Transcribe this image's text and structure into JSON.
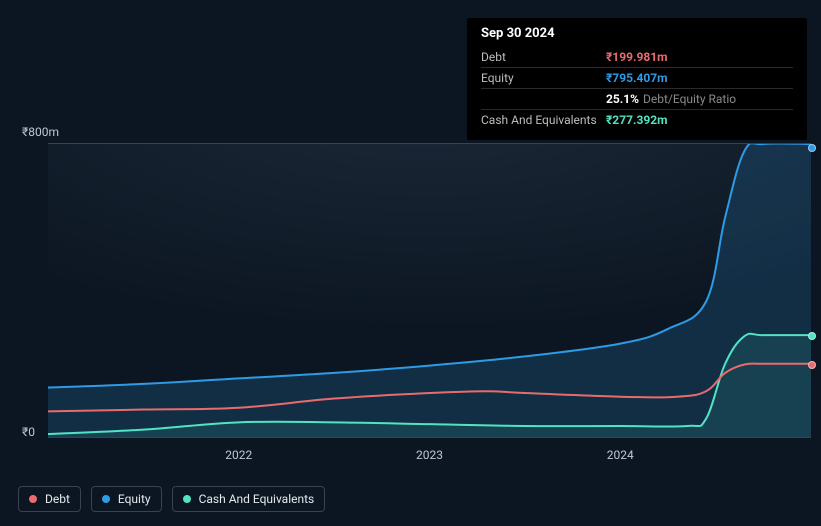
{
  "tooltip": {
    "date": "Sep 30 2024",
    "rows": [
      {
        "label": "Debt",
        "value": "₹199.981m",
        "color": "#e86b6f"
      },
      {
        "label": "Equity",
        "value": "₹795.407m",
        "color": "#2e9be6"
      },
      {
        "label": "",
        "ratio_pct": "25.1%",
        "ratio_label": "Debt/Equity Ratio"
      },
      {
        "label": "Cash And Equivalents",
        "value": "₹277.392m",
        "color": "#52e3c2"
      }
    ]
  },
  "chart": {
    "type": "area-line",
    "background": "#0c1622",
    "axis_color": "#3a424e",
    "text_color": "#bfc7cf",
    "ylim": [
      0,
      800
    ],
    "y_ticks": [
      {
        "v": 800,
        "label": "₹800m"
      },
      {
        "v": 0,
        "label": "₹0"
      }
    ],
    "x_domain": [
      2021.0,
      2025.0
    ],
    "x_ticks": [
      {
        "v": 2022,
        "label": "2022"
      },
      {
        "v": 2023,
        "label": "2023"
      },
      {
        "v": 2024,
        "label": "2024"
      }
    ],
    "series": [
      {
        "name": "Equity",
        "color": "#2e9be6",
        "fill": "rgba(46,155,230,0.18)",
        "stroke_width": 2,
        "points": [
          [
            2021.0,
            135
          ],
          [
            2021.5,
            145
          ],
          [
            2022.0,
            160
          ],
          [
            2022.5,
            175
          ],
          [
            2023.0,
            195
          ],
          [
            2023.5,
            220
          ],
          [
            2024.0,
            255
          ],
          [
            2024.25,
            295
          ],
          [
            2024.45,
            370
          ],
          [
            2024.55,
            600
          ],
          [
            2024.65,
            780
          ],
          [
            2024.75,
            800
          ],
          [
            2025.0,
            800
          ]
        ],
        "end_dot_y": 788
      },
      {
        "name": "Cash And Equivalents",
        "color": "#52e3c2",
        "fill": "rgba(82,227,194,0.10)",
        "stroke_width": 2,
        "points": [
          [
            2021.0,
            8
          ],
          [
            2021.5,
            20
          ],
          [
            2022.0,
            40
          ],
          [
            2022.5,
            40
          ],
          [
            2023.0,
            35
          ],
          [
            2023.5,
            30
          ],
          [
            2024.0,
            30
          ],
          [
            2024.35,
            30
          ],
          [
            2024.45,
            50
          ],
          [
            2024.55,
            200
          ],
          [
            2024.65,
            275
          ],
          [
            2024.75,
            278
          ],
          [
            2025.0,
            278
          ]
        ],
        "end_dot_y": 278
      },
      {
        "name": "Debt",
        "color": "#e86b6f",
        "fill": "none",
        "stroke_width": 2,
        "points": [
          [
            2021.0,
            70
          ],
          [
            2021.5,
            75
          ],
          [
            2022.0,
            80
          ],
          [
            2022.5,
            105
          ],
          [
            2023.0,
            120
          ],
          [
            2023.3,
            125
          ],
          [
            2023.5,
            120
          ],
          [
            2024.0,
            110
          ],
          [
            2024.3,
            110
          ],
          [
            2024.45,
            125
          ],
          [
            2024.55,
            175
          ],
          [
            2024.65,
            198
          ],
          [
            2024.75,
            200
          ],
          [
            2025.0,
            200
          ]
        ],
        "end_dot_y": 200
      }
    ]
  },
  "legend": {
    "items": [
      {
        "name": "Debt",
        "color": "#e86b6f"
      },
      {
        "name": "Equity",
        "color": "#2e9be6"
      },
      {
        "name": "Cash And Equivalents",
        "color": "#52e3c2"
      }
    ]
  }
}
